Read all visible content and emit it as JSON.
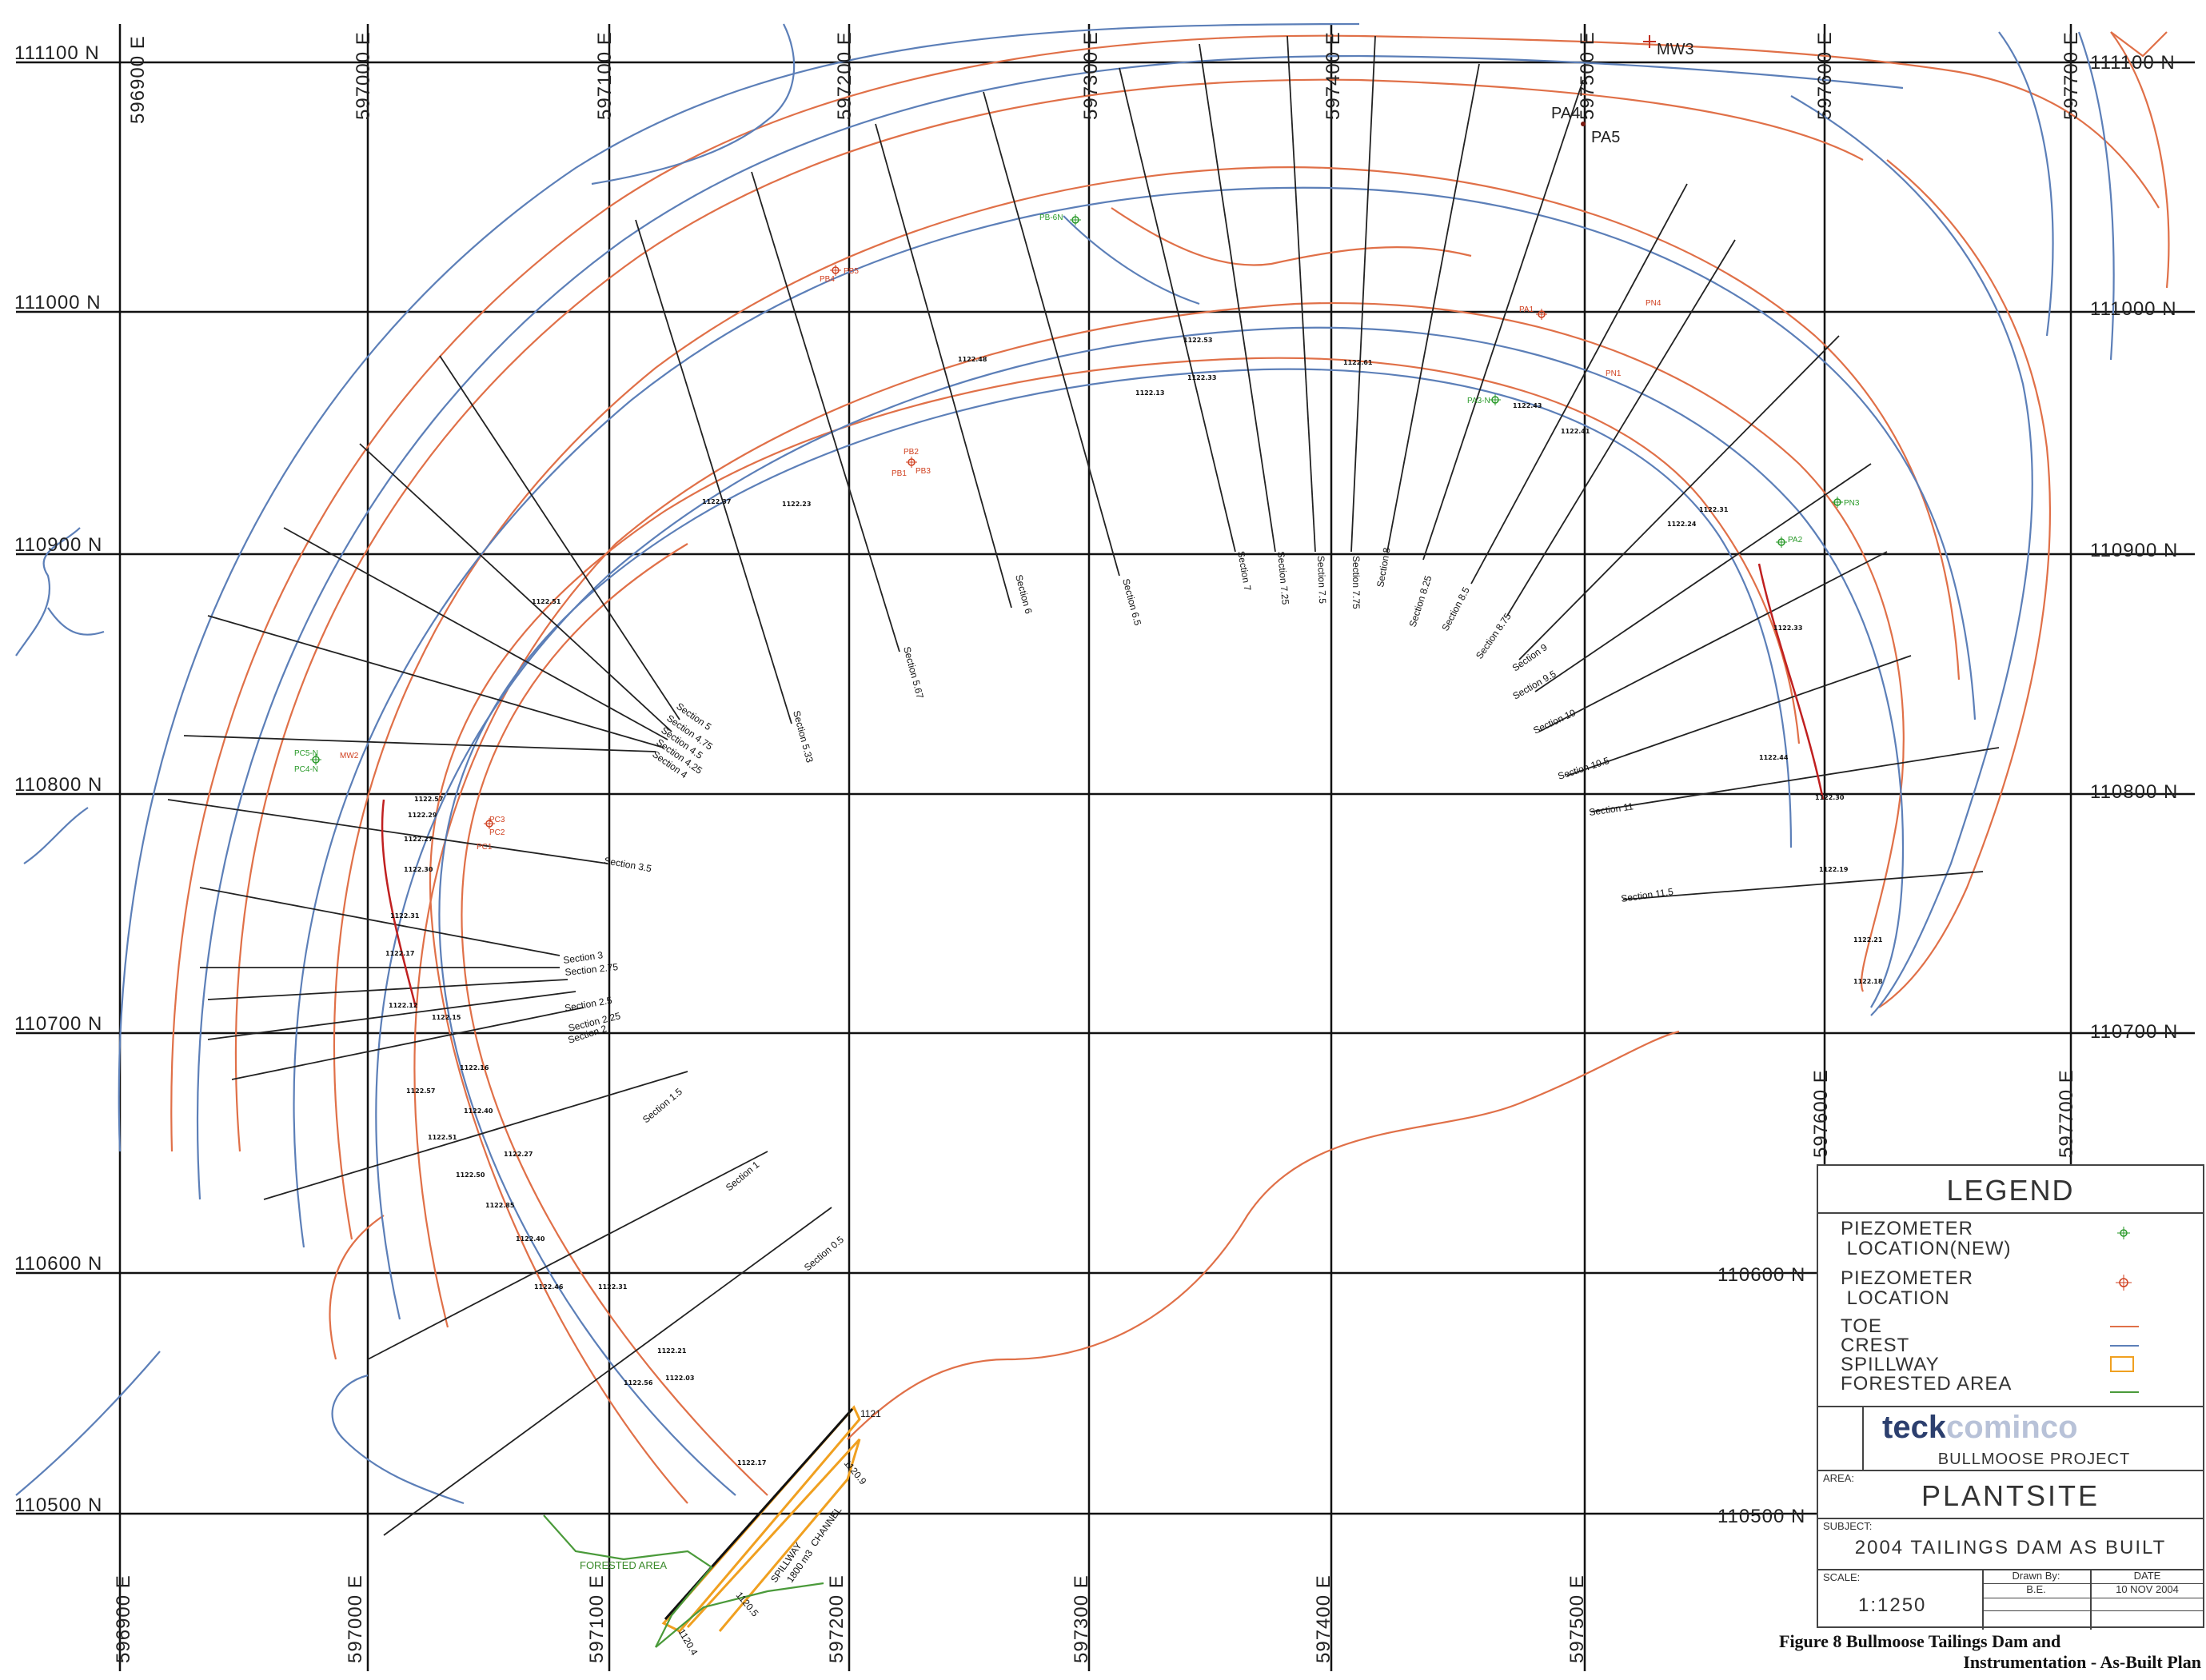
{
  "map": {
    "easting_labels": [
      "596900 E",
      "597000 E",
      "597100 E",
      "597200 E",
      "597300 E",
      "597400 E",
      "597500 E",
      "597600 E",
      "597700 E"
    ],
    "northing_labels": [
      "111100 N",
      "111000 N",
      "110900 N",
      "110800 N",
      "110700 N",
      "110600 N",
      "110500 N"
    ],
    "section_labels": [
      "Section 0.5",
      "Section 1",
      "Section 1.5",
      "Section 2",
      "Section 2.25",
      "Section 2.5",
      "Section 2.75",
      "Section 3",
      "Section 3.5",
      "Section 4",
      "Section 4.25",
      "Section 4.5",
      "Section 4.75",
      "Section 5",
      "Section 5.33",
      "Section 5.67",
      "Section 6",
      "Section 6.5",
      "Section 7",
      "Section 7.25",
      "Section 7.5",
      "Section 7.75",
      "Section 8",
      "Section 8.25",
      "Section 8.5",
      "Section 8.75",
      "Section 9",
      "Section 9.5",
      "Section 10",
      "Section 10.5",
      "Section 11",
      "Section 11.5"
    ],
    "piezometers_new": [
      "PB-6N",
      "PC5-N",
      "PC4-N",
      "PA3-N",
      "PA2",
      "PN3"
    ],
    "piezometers_existing": [
      "PB4",
      "PB5",
      "PB2",
      "PB1",
      "PB3",
      "PC1",
      "PC2",
      "PC3",
      "MW2",
      "PA1",
      "PN4",
      "PN1"
    ],
    "monitoring_points": [
      "MW3",
      "PA4",
      "PA5"
    ],
    "crest_elevations": [
      "1122.57",
      "1122.29",
      "1122.27",
      "1122.30",
      "1122.31",
      "1122.17",
      "1122.12",
      "1122.15",
      "1122.16",
      "1122.57",
      "1122.40",
      "1122.51",
      "1122.27",
      "1122.50",
      "1122.85",
      "1122.40",
      "1122.46",
      "1122.31",
      "1122.21",
      "1122.03",
      "1122.17",
      "1122.56",
      "1122.51",
      "1122.37",
      "1122.23",
      "1122.48",
      "1122.13",
      "1122.53",
      "1122.61",
      "1122.43",
      "1122.33",
      "1122.41",
      "1122.24",
      "1122.31",
      "1122.33",
      "1122.44",
      "1122.30",
      "1122.19",
      "1122.21",
      "1122.18"
    ],
    "spillway_labels": [
      "1121",
      "1120.9",
      "1120.5",
      "1120.4",
      "SPILLWAY",
      "1800 m3",
      "CHANNEL"
    ],
    "forested_area_label": "FORESTED AREA"
  },
  "legend": {
    "title": "LEGEND",
    "items": [
      {
        "label": "PIEZOMETER\n LOCATION(NEW)",
        "symbol": "piezometer-new-icon",
        "color": "#2a9a2a"
      },
      {
        "label": "PIEZOMETER\n LOCATION",
        "symbol": "piezometer-icon",
        "color": "#d04020"
      },
      {
        "label": "TOE",
        "symbol": "toe-line",
        "color": "#e07048"
      },
      {
        "label": "CREST",
        "symbol": "crest-line",
        "color": "#5c7fb8"
      },
      {
        "label": "SPILLWAY",
        "symbol": "spillway-box",
        "color": "#f0a020"
      },
      {
        "label": "FORESTED  AREA",
        "symbol": "forested-line",
        "color": "#4a9a3a"
      }
    ]
  },
  "title_block": {
    "company_logo": "teckcominco",
    "project": "BULLMOOSE PROJECT",
    "area_caption": "AREA:",
    "area": "PLANTSITE",
    "subject_caption": "SUBJECT:",
    "subject": "2004 TAILINGS DAM AS BUILT",
    "scale_caption": "SCALE:",
    "scale": "1:1250",
    "drawn_by_caption": "Drawn By:",
    "drawn_by": "B.E.",
    "date_caption": "DATE",
    "date": "10 NOV 2004"
  },
  "figure_caption": {
    "line1": "Figure 8   Bullmoose Tailings Dam and",
    "line2": "Instrumentation - As-Built Plan"
  }
}
